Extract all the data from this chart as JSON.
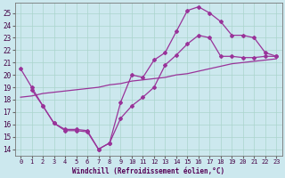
{
  "xlabel": "Windchill (Refroidissement éolien,°C)",
  "bg_color": "#cce8ee",
  "line_color": "#993399",
  "grid_color": "#aad4cc",
  "xlim": [
    -0.5,
    23.5
  ],
  "ylim": [
    13.5,
    25.8
  ],
  "yticks": [
    14,
    15,
    16,
    17,
    18,
    19,
    20,
    21,
    22,
    23,
    24,
    25
  ],
  "xticks": [
    0,
    1,
    2,
    3,
    4,
    5,
    6,
    7,
    8,
    9,
    10,
    11,
    12,
    13,
    14,
    15,
    16,
    17,
    18,
    19,
    20,
    21,
    22,
    23
  ],
  "line1_x": [
    0,
    1,
    2,
    3,
    4,
    5,
    6,
    7,
    8,
    9,
    10,
    11,
    12,
    13,
    14,
    15,
    16,
    17,
    18,
    19,
    20,
    21,
    22,
    23
  ],
  "line1_y": [
    20.5,
    19.0,
    17.5,
    16.1,
    15.6,
    15.6,
    15.5,
    14.0,
    14.5,
    17.8,
    20.0,
    19.8,
    21.2,
    21.8,
    23.5,
    25.2,
    25.5,
    25.0,
    24.3,
    23.2,
    23.2,
    23.0,
    21.8,
    21.5
  ],
  "line2_x": [
    1,
    2,
    3,
    4,
    5,
    6,
    7,
    8,
    9,
    10,
    11,
    12,
    13,
    14,
    15,
    16,
    17,
    18,
    19,
    20,
    21,
    22,
    23
  ],
  "line2_y": [
    18.8,
    17.5,
    16.1,
    15.5,
    15.5,
    15.4,
    14.0,
    14.5,
    16.5,
    17.5,
    18.2,
    19.0,
    20.8,
    21.6,
    22.5,
    23.2,
    23.0,
    21.5,
    21.5,
    21.4,
    21.4,
    21.5,
    21.5
  ],
  "line3_x": [
    0,
    1,
    2,
    3,
    4,
    5,
    6,
    7,
    8,
    9,
    10,
    11,
    12,
    13,
    14,
    15,
    16,
    17,
    18,
    19,
    20,
    21,
    22,
    23
  ],
  "line3_y": [
    18.2,
    18.3,
    18.5,
    18.6,
    18.7,
    18.8,
    18.9,
    19.0,
    19.2,
    19.3,
    19.5,
    19.6,
    19.7,
    19.8,
    20.0,
    20.1,
    20.3,
    20.5,
    20.7,
    20.9,
    21.0,
    21.1,
    21.2,
    21.3
  ]
}
